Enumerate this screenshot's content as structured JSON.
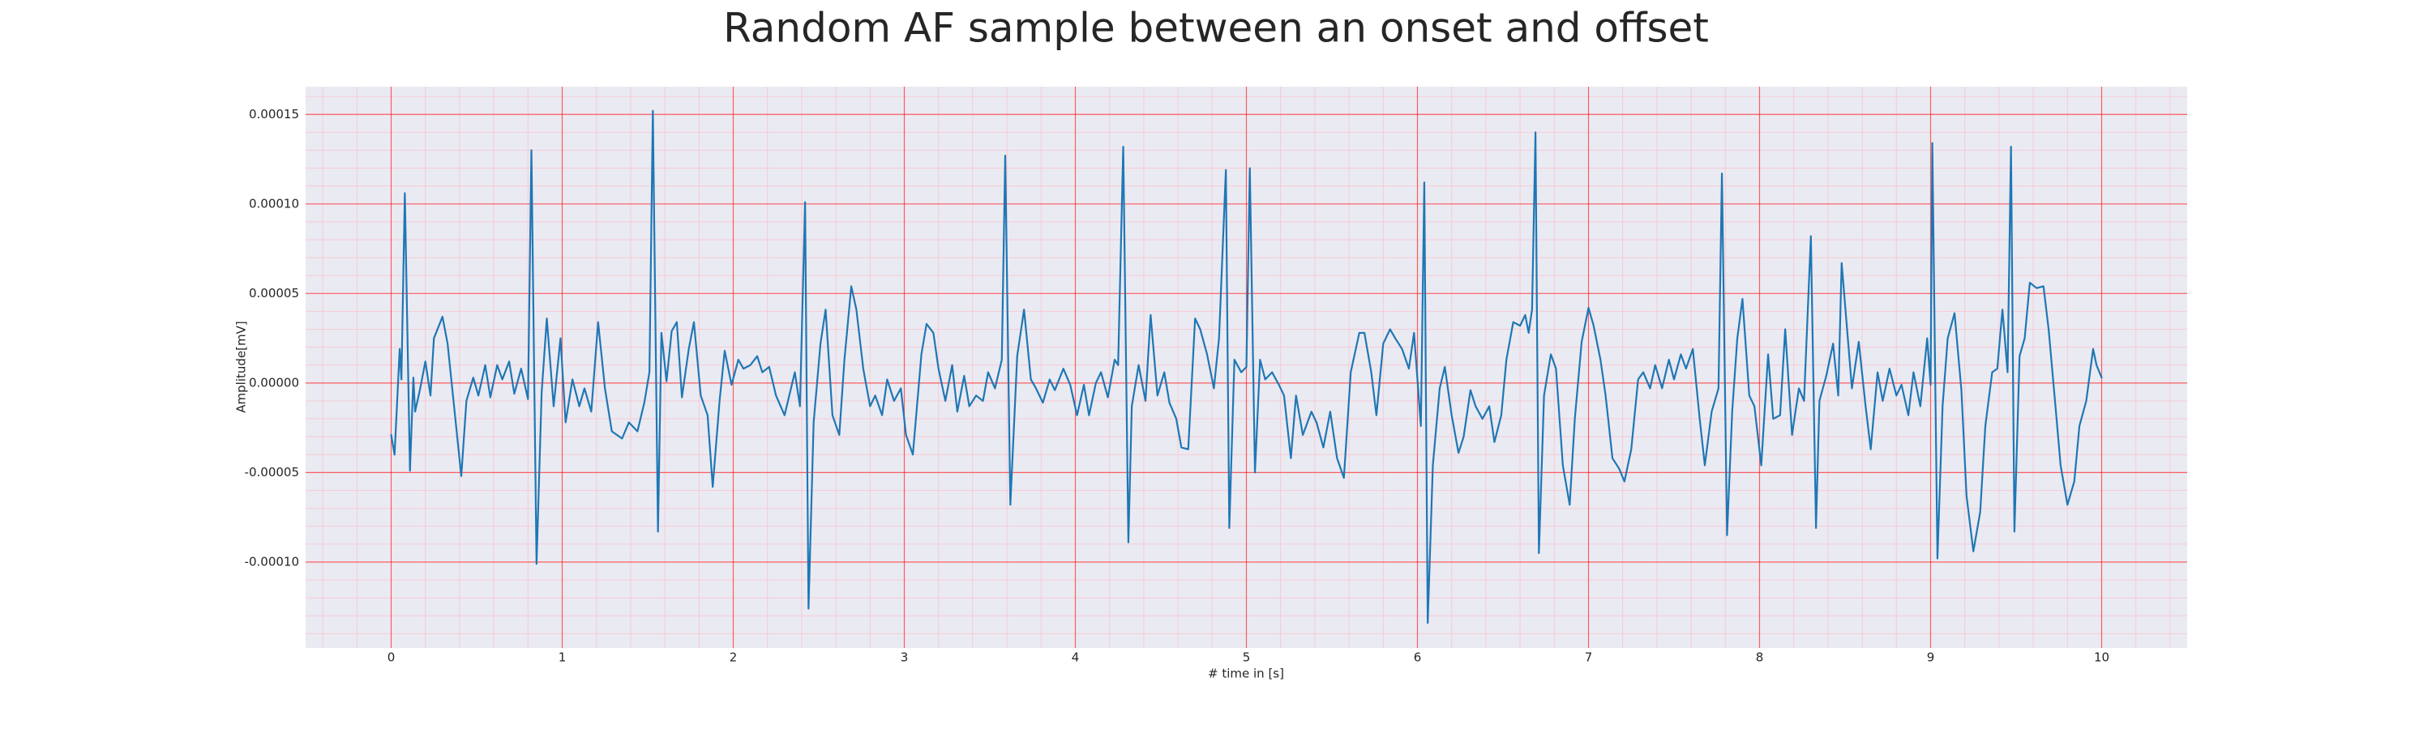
{
  "chart_data": {
    "type": "line",
    "title": "Random AF sample between an onset and offset",
    "xlabel": "# time in [s]",
    "ylabel": "Amplitude[mV]",
    "xlim": [
      -0.5,
      10.5
    ],
    "ylim": [
      -0.000148,
      0.0001655
    ],
    "xticks": [
      0,
      1,
      2,
      3,
      4,
      5,
      6,
      7,
      8,
      9,
      10
    ],
    "yticks": [
      {
        "value": -0.0001,
        "label": "-0.00010"
      },
      {
        "value": -5e-05,
        "label": "-0.00005"
      },
      {
        "value": 0,
        "label": "0.00000"
      },
      {
        "value": 5e-05,
        "label": "0.00005"
      },
      {
        "value": 0.0001,
        "label": "0.00010"
      },
      {
        "value": 0.00015,
        "label": "0.00015"
      }
    ],
    "grid": true,
    "grid_color": "#ff0000",
    "minor_grid": {
      "x": 0.2,
      "y": 1e-05,
      "color": "#ffb6c1"
    },
    "background": "#eaeaf2",
    "series": [
      {
        "color": "#1f77b4",
        "x": [
          0.0,
          0.02,
          0.05,
          0.06,
          0.08,
          0.11,
          0.13,
          0.14,
          0.17,
          0.2,
          0.23,
          0.25,
          0.3,
          0.33,
          0.37,
          0.41,
          0.44,
          0.48,
          0.51,
          0.55,
          0.58,
          0.62,
          0.65,
          0.69,
          0.72,
          0.76,
          0.8,
          0.82,
          0.85,
          0.88,
          0.91,
          0.95,
          0.99,
          1.02,
          1.06,
          1.1,
          1.13,
          1.17,
          1.21,
          1.25,
          1.29,
          1.35,
          1.39,
          1.44,
          1.48,
          1.51,
          1.53,
          1.56,
          1.58,
          1.61,
          1.64,
          1.67,
          1.7,
          1.74,
          1.77,
          1.81,
          1.85,
          1.88,
          1.92,
          1.95,
          1.99,
          2.03,
          2.06,
          2.1,
          2.14,
          2.17,
          2.21,
          2.25,
          2.3,
          2.36,
          2.39,
          2.42,
          2.44,
          2.47,
          2.51,
          2.54,
          2.58,
          2.62,
          2.65,
          2.69,
          2.72,
          2.76,
          2.8,
          2.83,
          2.87,
          2.9,
          2.94,
          2.98,
          3.01,
          3.05,
          3.1,
          3.13,
          3.17,
          3.2,
          3.24,
          3.28,
          3.31,
          3.35,
          3.38,
          3.42,
          3.46,
          3.49,
          3.53,
          3.57,
          3.59,
          3.62,
          3.66,
          3.7,
          3.74,
          3.77,
          3.81,
          3.85,
          3.88,
          3.93,
          3.97,
          4.01,
          4.05,
          4.08,
          4.12,
          4.15,
          4.19,
          4.23,
          4.25,
          4.28,
          4.31,
          4.33,
          4.37,
          4.41,
          4.44,
          4.48,
          4.52,
          4.55,
          4.59,
          4.62,
          4.66,
          4.7,
          4.73,
          4.77,
          4.81,
          4.84,
          4.88,
          4.9,
          4.93,
          4.97,
          5.0,
          5.02,
          5.05,
          5.08,
          5.11,
          5.15,
          5.19,
          5.22,
          5.26,
          5.29,
          5.33,
          5.38,
          5.41,
          5.45,
          5.49,
          5.53,
          5.57,
          5.61,
          5.66,
          5.69,
          5.73,
          5.76,
          5.8,
          5.84,
          5.87,
          5.91,
          5.95,
          5.98,
          6.02,
          6.04,
          6.06,
          6.09,
          6.13,
          6.16,
          6.2,
          6.24,
          6.27,
          6.31,
          6.34,
          6.38,
          6.42,
          6.45,
          6.49,
          6.52,
          6.56,
          6.6,
          6.63,
          6.65,
          6.67,
          6.69,
          6.71,
          6.74,
          6.78,
          6.81,
          6.85,
          6.89,
          6.92,
          6.96,
          7.0,
          7.03,
          7.07,
          7.1,
          7.14,
          7.18,
          7.21,
          7.25,
          7.29,
          7.32,
          7.36,
          7.39,
          7.43,
          7.47,
          7.5,
          7.54,
          7.57,
          7.61,
          7.65,
          7.68,
          7.72,
          7.76,
          7.78,
          7.81,
          7.84,
          7.87,
          7.9,
          7.94,
          7.97,
          8.01,
          8.05,
          8.08,
          8.12,
          8.15,
          8.19,
          8.23,
          8.26,
          8.3,
          8.33,
          8.35,
          8.39,
          8.43,
          8.46,
          8.48,
          8.51,
          8.54,
          8.58,
          8.62,
          8.65,
          8.69,
          8.72,
          8.76,
          8.8,
          8.83,
          8.87,
          8.9,
          8.94,
          8.98,
          9.0,
          9.01,
          9.04,
          9.07,
          9.1,
          9.14,
          9.18,
          9.21,
          9.25,
          9.29,
          9.32,
          9.36,
          9.39,
          9.42,
          9.45,
          9.47,
          9.49,
          9.52,
          9.55,
          9.58,
          9.62,
          9.66,
          9.69,
          9.73,
          9.76,
          9.8,
          9.84,
          9.87,
          9.91,
          9.95,
          9.97,
          10.0
        ],
        "values": [
          -2.9e-05,
          -4e-05,
          1.9e-05,
          2e-06,
          0.000106,
          -4.9e-05,
          3e-06,
          -1.6e-05,
          -3e-06,
          1.2e-05,
          -7e-06,
          2.5e-05,
          3.7e-05,
          2.2e-05,
          -1.5e-05,
          -5.2e-05,
          -1e-05,
          3e-06,
          -7e-06,
          1e-05,
          -8e-06,
          1e-05,
          2e-06,
          1.2e-05,
          -6e-06,
          8e-06,
          -9e-06,
          0.00013,
          -0.000101,
          -5e-06,
          3.6e-05,
          -1.3e-05,
          2.5e-05,
          -2.2e-05,
          2e-06,
          -1.3e-05,
          -3e-06,
          -1.6e-05,
          3.4e-05,
          -3e-06,
          -2.7e-05,
          -3.1e-05,
          -2.2e-05,
          -2.7e-05,
          -1.1e-05,
          6e-06,
          0.000152,
          -8.3e-05,
          2.8e-05,
          1e-06,
          2.9e-05,
          3.4e-05,
          -8e-06,
          1.9e-05,
          3.4e-05,
          -7e-06,
          -1.8e-05,
          -5.8e-05,
          -1e-05,
          1.8e-05,
          -1e-06,
          1.3e-05,
          8e-06,
          1e-05,
          1.5e-05,
          6e-06,
          9e-06,
          -7e-06,
          -1.8e-05,
          6e-06,
          -1.3e-05,
          0.000101,
          -0.000126,
          -2.2e-05,
          2.2e-05,
          4.1e-05,
          -1.8e-05,
          -2.9e-05,
          1.3e-05,
          5.4e-05,
          4.1e-05,
          8e-06,
          -1.3e-05,
          -7e-06,
          -1.8e-05,
          2e-06,
          -1e-05,
          -3e-06,
          -2.9e-05,
          -4e-05,
          1.6e-05,
          3.3e-05,
          2.8e-05,
          8e-06,
          -1e-05,
          1e-05,
          -1.6e-05,
          4e-06,
          -1.3e-05,
          -7e-06,
          -1e-05,
          6e-06,
          -3e-06,
          1.3e-05,
          0.000127,
          -6.8e-05,
          1.5e-05,
          4.1e-05,
          2e-06,
          -3e-06,
          -1.1e-05,
          2e-06,
          -4e-06,
          8e-06,
          -1e-06,
          -1.8e-05,
          -1e-06,
          -1.8e-05,
          0,
          6e-06,
          -8e-06,
          1.3e-05,
          1e-05,
          0.000132,
          -8.9e-05,
          -1.3e-05,
          1e-05,
          -1e-05,
          3.8e-05,
          -7e-06,
          6e-06,
          -1.1e-05,
          -2e-05,
          -3.6e-05,
          -3.7e-05,
          3.6e-05,
          3e-05,
          1.6e-05,
          -3e-06,
          2.5e-05,
          0.000119,
          -8.1e-05,
          1.3e-05,
          6e-06,
          9e-06,
          0.00012,
          -5e-05,
          1.3e-05,
          2e-06,
          6e-06,
          -1e-06,
          -7e-06,
          -4.2e-05,
          -7e-06,
          -2.9e-05,
          -1.6e-05,
          -2.2e-05,
          -3.6e-05,
          -1.6e-05,
          -4.2e-05,
          -5.3e-05,
          6e-06,
          2.8e-05,
          2.8e-05,
          6e-06,
          -1.8e-05,
          2.2e-05,
          3e-05,
          2.5e-05,
          1.9e-05,
          8e-06,
          2.8e-05,
          -2.4e-05,
          0.000112,
          -0.000134,
          -4.6e-05,
          -3e-06,
          9e-06,
          -1.8e-05,
          -3.9e-05,
          -3e-05,
          -4e-06,
          -1.3e-05,
          -2e-05,
          -1.3e-05,
          -3.3e-05,
          -1.8e-05,
          1.3e-05,
          3.4e-05,
          3.2e-05,
          3.8e-05,
          2.8e-05,
          4.1e-05,
          0.00014,
          -9.5e-05,
          -7e-06,
          1.6e-05,
          8e-06,
          -4.6e-05,
          -6.8e-05,
          -2e-05,
          2.3e-05,
          4.2e-05,
          3.2e-05,
          1.3e-05,
          -7e-06,
          -4.2e-05,
          -4.8e-05,
          -5.5e-05,
          -3.7e-05,
          2e-06,
          6e-06,
          -3e-06,
          1e-05,
          -3e-06,
          1.3e-05,
          2e-06,
          1.6e-05,
          8e-06,
          1.9e-05,
          -2e-05,
          -4.6e-05,
          -1.6e-05,
          -3e-06,
          0.000117,
          -8.5e-05,
          -1.6e-05,
          2.5e-05,
          4.7e-05,
          -7e-06,
          -1.3e-05,
          -4.6e-05,
          1.6e-05,
          -2e-05,
          -1.8e-05,
          3e-05,
          -2.9e-05,
          -3e-06,
          -1e-05,
          8.2e-05,
          -8.1e-05,
          -1e-05,
          4e-06,
          2.2e-05,
          -7e-06,
          6.7e-05,
          3.2e-05,
          -3e-06,
          2.3e-05,
          -1.3e-05,
          -3.7e-05,
          6e-06,
          -1e-05,
          8e-06,
          -7e-06,
          -1e-06,
          -1.8e-05,
          6e-06,
          -1.3e-05,
          2.5e-05,
          -1e-06,
          0.000134,
          -9.8e-05,
          -1.3e-05,
          2.5e-05,
          3.9e-05,
          -4e-06,
          -6.3e-05,
          -9.4e-05,
          -7.2e-05,
          -2.4e-05,
          6e-06,
          8e-06,
          4.1e-05,
          6e-06,
          0.000132,
          -8.3e-05,
          1.5e-05,
          2.5e-05,
          5.6e-05,
          5.3e-05,
          5.4e-05,
          3e-05,
          -1.3e-05,
          -4.6e-05,
          -6.8e-05,
          -5.5e-05,
          -2.4e-05,
          -1e-05,
          1.9e-05,
          1e-05,
          3e-06
        ]
      }
    ]
  }
}
